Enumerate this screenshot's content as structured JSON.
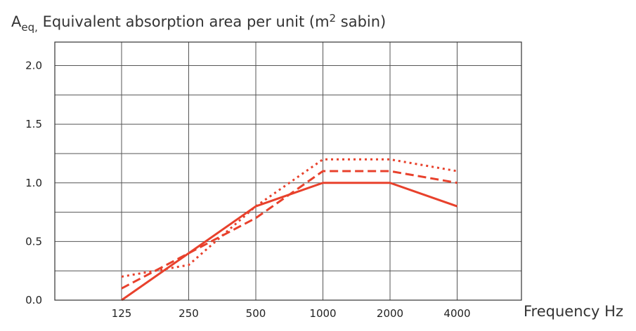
{
  "chart_data": {
    "type": "line",
    "ylabel_main": "A",
    "ylabel_sub": "eq,",
    "ylabel_rest": " Equivalent absorption area per unit (m",
    "ylabel_sup": "2",
    "ylabel_end": " sabin)",
    "xlabel": "Frequency Hz",
    "categories": [
      "125",
      "250",
      "500",
      "1000",
      "2000",
      "4000"
    ],
    "y_ticks": [
      "0.0",
      "0.5",
      "1.0",
      "1.5",
      "2.0"
    ],
    "ylim": [
      0,
      2.0
    ],
    "grid": true,
    "line_color": "#e8412c",
    "series": [
      {
        "style": "solid",
        "values": [
          0.0,
          0.4,
          0.8,
          1.0,
          1.0,
          0.8
        ]
      },
      {
        "style": "dashed",
        "values": [
          0.1,
          0.4,
          0.7,
          1.1,
          1.1,
          1.0
        ]
      },
      {
        "style": "dotted",
        "values": [
          0.2,
          0.3,
          0.8,
          1.2,
          1.2,
          1.1
        ]
      }
    ]
  }
}
